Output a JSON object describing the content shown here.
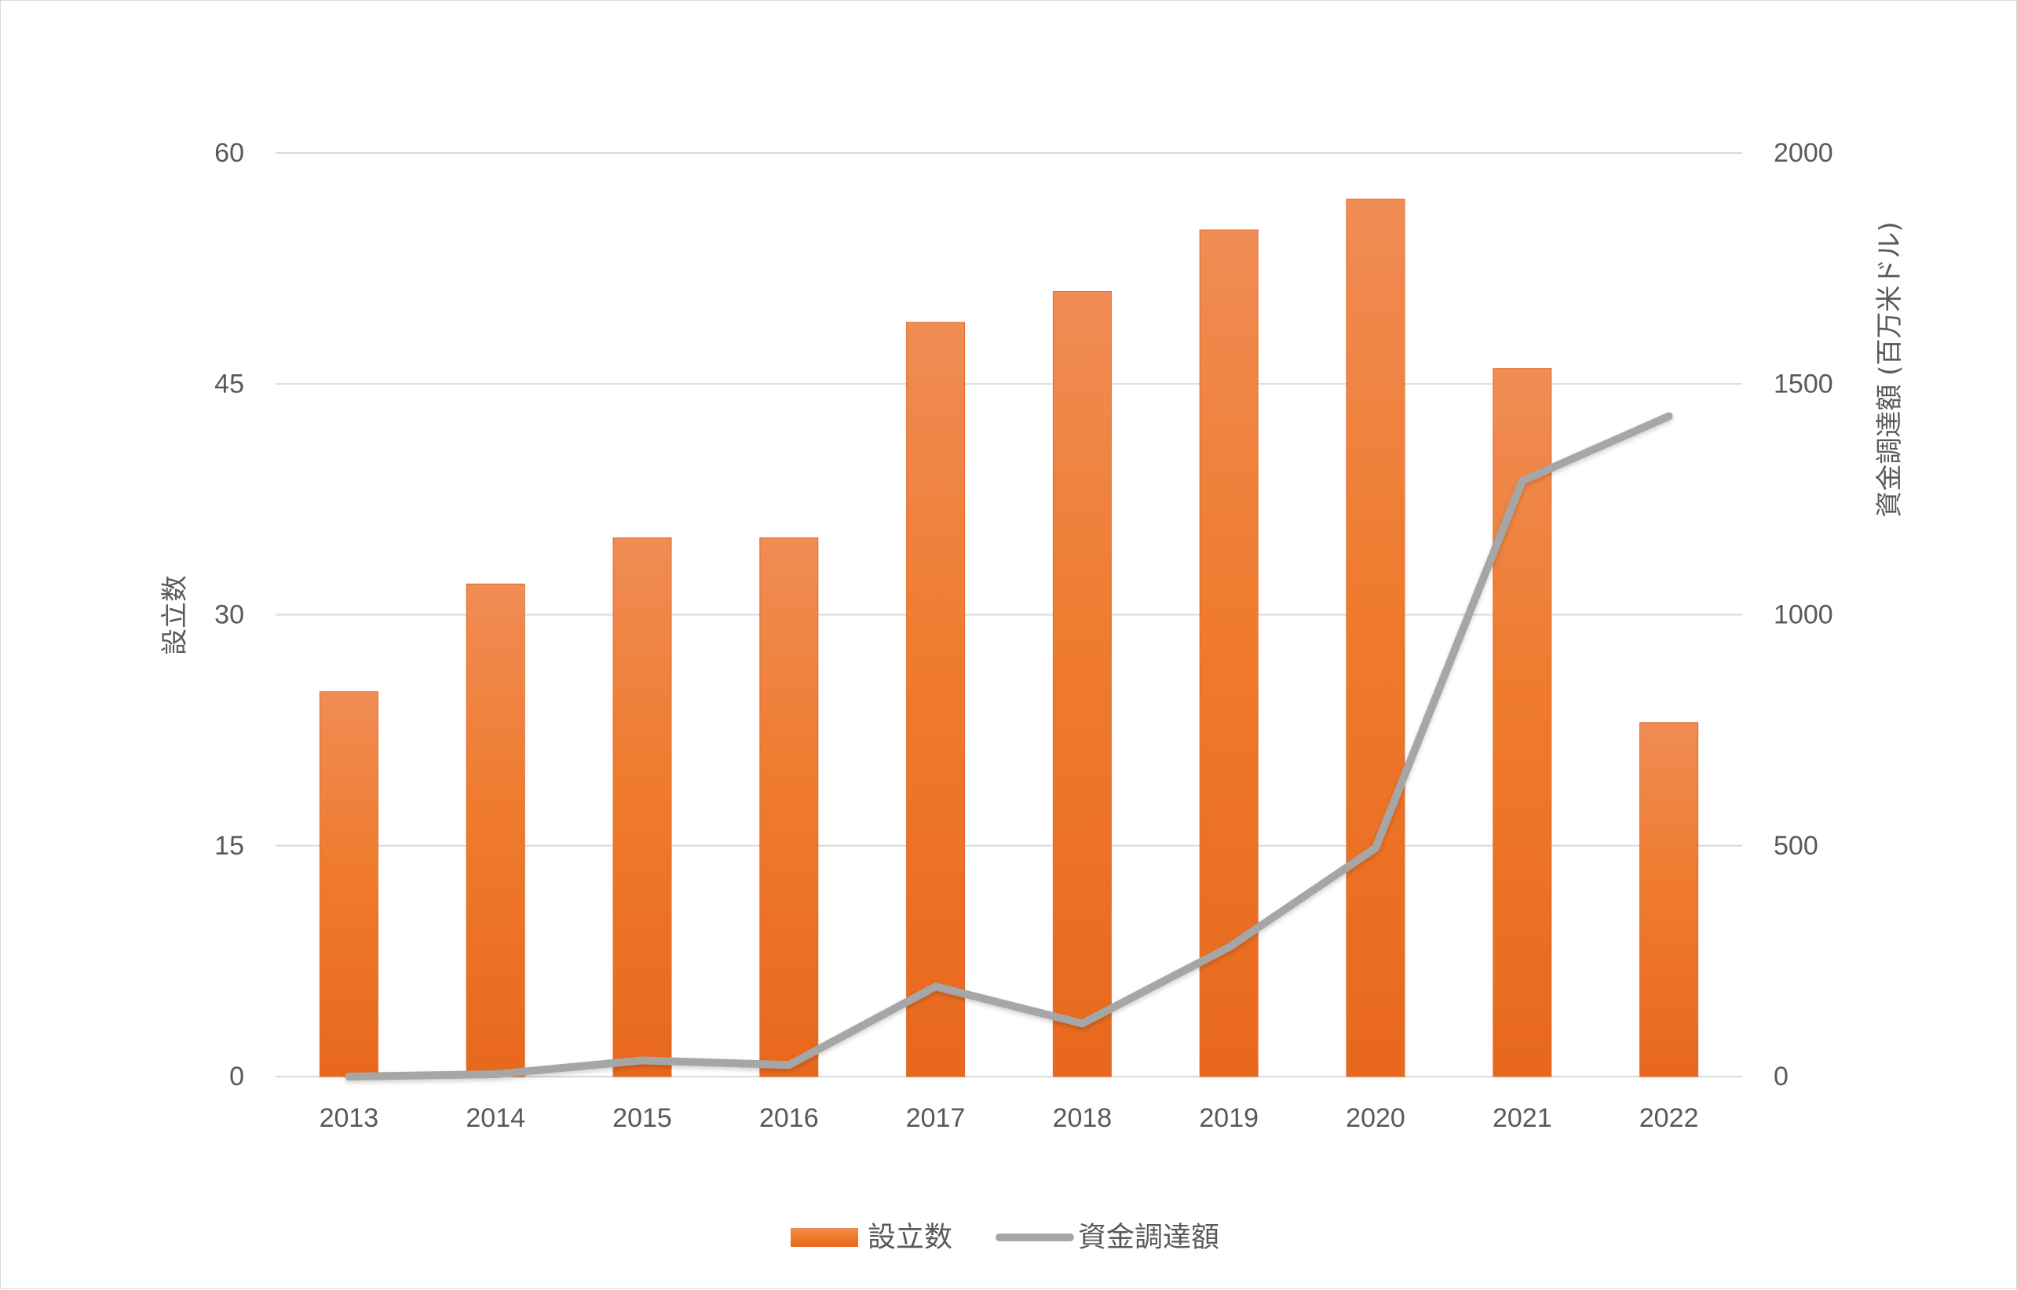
{
  "chart_data": {
    "type": "bar",
    "categories": [
      "2013",
      "2014",
      "2015",
      "2016",
      "2017",
      "2018",
      "2019",
      "2020",
      "2021",
      "2022"
    ],
    "series": [
      {
        "name": "設立数",
        "type": "bar",
        "axis": "left",
        "values": [
          25,
          32,
          35,
          35,
          49,
          51,
          55,
          57,
          46,
          23
        ]
      },
      {
        "name": "資金調達額",
        "type": "line",
        "axis": "right",
        "values": [
          0,
          5,
          35,
          25,
          195,
          115,
          280,
          495,
          1290,
          1430
        ]
      }
    ],
    "title": "",
    "xlabel": "",
    "ylabel": "設立数",
    "y2label": "資金調達額 (百万米ドル)",
    "ylim": [
      0,
      60
    ],
    "yticks": [
      "0",
      "15",
      "30",
      "45",
      "60"
    ],
    "y2lim": [
      0,
      2000
    ],
    "y2ticks": [
      "0",
      "500",
      "1000",
      "1500",
      "2000"
    ],
    "grid": true,
    "legend_position": "bottom",
    "colors": {
      "bar_top": "#f08c55",
      "bar_bottom": "#e8681d",
      "line": "#a6a6a6",
      "grid": "#d9d9d9",
      "text": "#595959"
    }
  }
}
